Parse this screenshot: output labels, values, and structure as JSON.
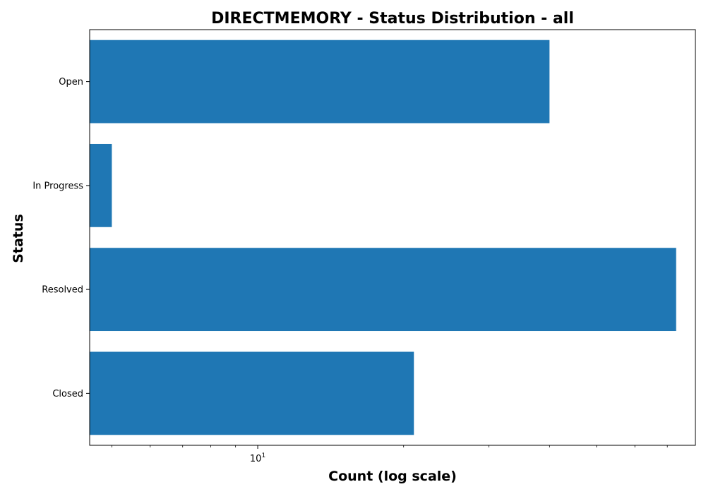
{
  "chart_data": {
    "type": "bar",
    "orientation": "horizontal",
    "title": "DIRECTMEMORY - Status Distribution - all",
    "xlabel": "Count (log scale)",
    "ylabel": "Status",
    "x_scale": "log",
    "xlim": [
      4.5,
      80
    ],
    "x_major_ticks": [
      {
        "value": 10,
        "base": "10",
        "exponent": "1"
      }
    ],
    "x_minor_ticks": [
      5,
      6,
      7,
      8,
      9,
      20,
      30,
      40,
      50,
      60,
      70
    ],
    "categories": [
      "Open",
      "In Progress",
      "Resolved",
      "Closed"
    ],
    "values": [
      40,
      5,
      73,
      21
    ],
    "bar_color": "#1f77b4",
    "grid": false,
    "legend": null
  }
}
